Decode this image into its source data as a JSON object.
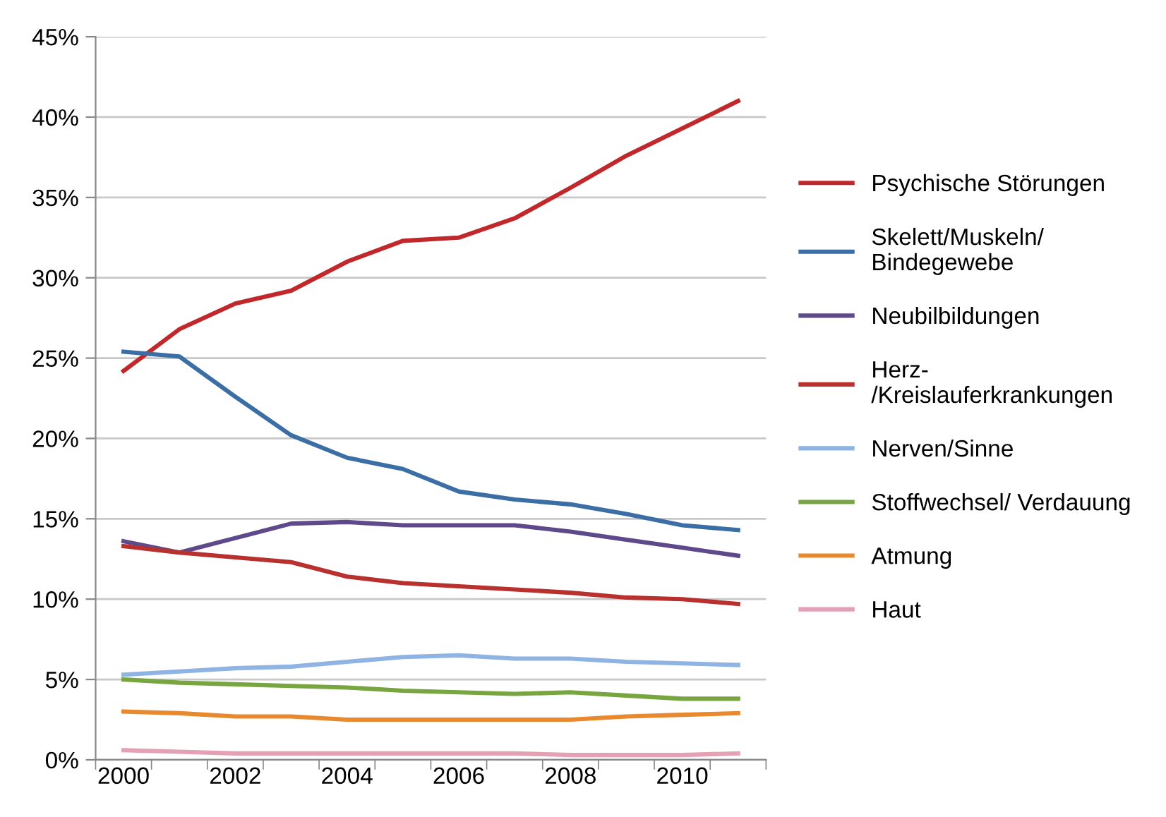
{
  "chart_data": {
    "type": "line",
    "categories": [
      "2000",
      null,
      "2002",
      null,
      "2004",
      null,
      "2006",
      null,
      "2008",
      null,
      "2010",
      null
    ],
    "series": [
      {
        "name": "Psychische Störungen",
        "color": "#c0282c",
        "values": [
          24.2,
          26.8,
          28.4,
          29.2,
          31.0,
          32.3,
          32.5,
          33.7,
          35.6,
          37.6,
          39.3,
          41.0
        ]
      },
      {
        "name": "Skelett/Muskeln/\nBindegewebe",
        "color": "#3a6ea5",
        "values": [
          25.4,
          25.1,
          22.6,
          20.2,
          18.8,
          18.1,
          16.7,
          16.2,
          15.9,
          15.3,
          14.6,
          14.3
        ]
      },
      {
        "name": "Neubilbildungen",
        "color": "#5e4a8a",
        "values": [
          13.6,
          12.9,
          13.8,
          14.7,
          14.8,
          14.6,
          14.6,
          14.6,
          14.2,
          13.7,
          13.2,
          12.7
        ]
      },
      {
        "name": "Herz-\n/Kreislauferkrankungen",
        "color": "#b8312f",
        "values": [
          13.3,
          12.9,
          12.6,
          12.3,
          11.4,
          11.0,
          10.8,
          10.6,
          10.4,
          10.1,
          10.0,
          9.7
        ]
      },
      {
        "name": "Nerven/Sinne",
        "color": "#8fb4e3",
        "values": [
          5.3,
          5.5,
          5.7,
          5.8,
          6.1,
          6.4,
          6.5,
          6.3,
          6.3,
          6.1,
          6.0,
          5.9
        ]
      },
      {
        "name": "Stoffwechsel/ Verdauung",
        "color": "#77a540",
        "values": [
          5.0,
          4.8,
          4.7,
          4.6,
          4.5,
          4.3,
          4.2,
          4.1,
          4.2,
          4.0,
          3.8,
          3.8
        ]
      },
      {
        "name": "Atmung",
        "color": "#e8892f",
        "values": [
          3.0,
          2.9,
          2.7,
          2.7,
          2.5,
          2.5,
          2.5,
          2.5,
          2.5,
          2.7,
          2.8,
          2.9
        ]
      },
      {
        "name": "Haut",
        "color": "#e4a0b4",
        "values": [
          0.6,
          0.5,
          0.4,
          0.4,
          0.4,
          0.4,
          0.4,
          0.4,
          0.3,
          0.3,
          0.3,
          0.4
        ]
      }
    ],
    "ylim": [
      0,
      45
    ],
    "yticks": [
      {
        "value": 0,
        "label": "0%"
      },
      {
        "value": 5,
        "label": "5%"
      },
      {
        "value": 10,
        "label": "10%"
      },
      {
        "value": 15,
        "label": "15%"
      },
      {
        "value": 20,
        "label": "20%"
      },
      {
        "value": 25,
        "label": "25%"
      },
      {
        "value": 30,
        "label": "30%"
      },
      {
        "value": 35,
        "label": "35%"
      },
      {
        "value": 40,
        "label": "40%"
      },
      {
        "value": 45,
        "label": "45%"
      }
    ],
    "grid": "y",
    "legend": "right",
    "marker": "none",
    "line_style": "solid"
  }
}
